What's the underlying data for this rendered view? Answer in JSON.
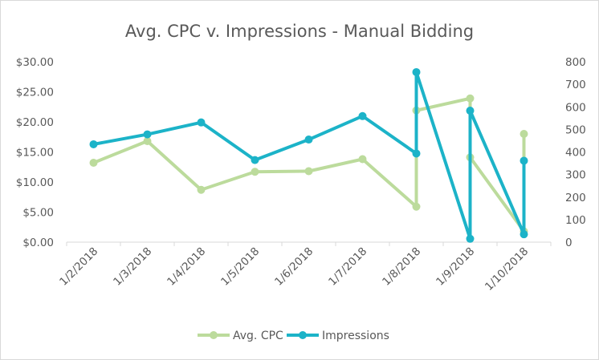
{
  "chart_data": {
    "type": "line",
    "title": "Avg. CPC v. Impressions - Manual Bidding",
    "categories": [
      "1/2/2018",
      "1/3/2018",
      "1/4/2018",
      "1/5/2018",
      "1/6/2018",
      "1/7/2018",
      "1/8/2018",
      "1/9/2018",
      "1/10/2018"
    ],
    "series": [
      {
        "name": "Avg. CPC",
        "axis": "left",
        "color": "#bcdb9c",
        "points": [
          {
            "x": "1/2/2018",
            "y": 13.2
          },
          {
            "x": "1/3/2018",
            "y": 16.8
          },
          {
            "x": "1/4/2018",
            "y": 8.7
          },
          {
            "x": "1/5/2018",
            "y": 11.7
          },
          {
            "x": "1/6/2018",
            "y": 11.8
          },
          {
            "x": "1/7/2018",
            "y": 13.8
          },
          {
            "x": "1/8/2018",
            "y": 5.9
          },
          {
            "x": "1/8/2018",
            "y": 21.9
          },
          {
            "x": "1/9/2018",
            "y": 23.9
          },
          {
            "x": "1/9/2018",
            "y": 14.1
          },
          {
            "x": "1/10/2018",
            "y": 1.8
          },
          {
            "x": "1/10/2018",
            "y": 18.0
          }
        ]
      },
      {
        "name": "Impressions",
        "axis": "right",
        "color": "#1cb3c8",
        "points": [
          {
            "x": "1/2/2018",
            "y": 434
          },
          {
            "x": "1/3/2018",
            "y": 478
          },
          {
            "x": "1/4/2018",
            "y": 531
          },
          {
            "x": "1/5/2018",
            "y": 364
          },
          {
            "x": "1/6/2018",
            "y": 455
          },
          {
            "x": "1/7/2018",
            "y": 559
          },
          {
            "x": "1/8/2018",
            "y": 393
          },
          {
            "x": "1/8/2018",
            "y": 754
          },
          {
            "x": "1/9/2018",
            "y": 15
          },
          {
            "x": "1/9/2018",
            "y": 583
          },
          {
            "x": "1/10/2018",
            "y": 35
          },
          {
            "x": "1/10/2018",
            "y": 361
          }
        ]
      }
    ],
    "y_left": {
      "min": 0,
      "max": 30,
      "step": 5,
      "ticks": [
        "$0.00",
        "$5.00",
        "$10.00",
        "$15.00",
        "$20.00",
        "$25.00",
        "$30.00"
      ]
    },
    "y_right": {
      "min": 0,
      "max": 800,
      "step": 100,
      "ticks": [
        "0",
        "100",
        "200",
        "300",
        "400",
        "500",
        "600",
        "700",
        "800"
      ]
    },
    "grid": false,
    "legend": "bottom",
    "xlabel": "",
    "ylabel": ""
  }
}
